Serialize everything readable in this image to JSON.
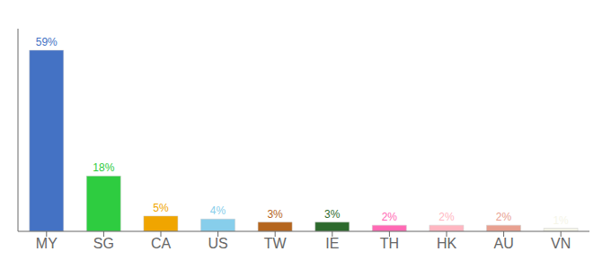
{
  "chart_data": {
    "type": "bar",
    "categories": [
      "MY",
      "SG",
      "CA",
      "US",
      "TW",
      "IE",
      "TH",
      "HK",
      "AU",
      "VN"
    ],
    "values": [
      59,
      18,
      5,
      4,
      3,
      3,
      2,
      2,
      2,
      1
    ],
    "value_labels": [
      "59%",
      "18%",
      "5%",
      "4%",
      "3%",
      "3%",
      "2%",
      "2%",
      "2%",
      "1%"
    ],
    "colors": [
      "#4472c4",
      "#2ecc40",
      "#f0a500",
      "#87ceeb",
      "#b5651d",
      "#2d6a2d",
      "#ff69b4",
      "#ffb6c1",
      "#e8a090",
      "#f5f5e8"
    ],
    "ylim": [
      0,
      66
    ],
    "data_labels": true,
    "tick_labels": "x",
    "grid": false
  }
}
